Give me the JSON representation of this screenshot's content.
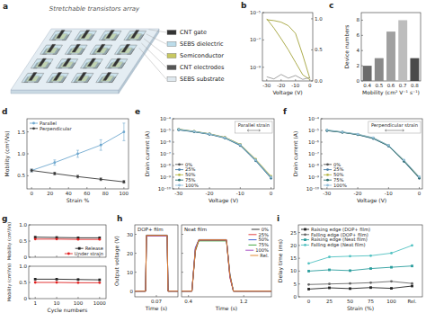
{
  "diagram": {
    "panel": "a",
    "title": "Stretchable transistors array",
    "layers": [
      "CNT gate",
      "SEBS dielectric",
      "Semiconductor",
      "CNT electrodes",
      "SEBS substrate"
    ]
  },
  "chart_data": [
    {
      "panel": "b",
      "type": "line",
      "log": "y",
      "x": [
        -30,
        -25,
        -20,
        -15,
        -10,
        -5,
        0
      ],
      "xlim": [
        -33,
        2
      ],
      "xticks": [
        -30,
        -20,
        -10,
        0
      ],
      "ylim": [
        1e-10,
        1e-05
      ],
      "yticks": [
        {
          "value": 1e-09,
          "label": "10⁻⁹"
        },
        {
          "value": 1e-07,
          "label": "10⁻⁷"
        },
        {
          "value": 1e-05,
          "label": "10⁻⁵"
        }
      ],
      "y2lim": [
        0,
        1.1
      ],
      "y2ticks": [
        {
          "value": 0,
          "label": "0.0"
        },
        0.5,
        {
          "value": 1,
          "label": "1.0"
        }
      ],
      "xlabel": "Voltage (V)",
      "series": [
        {
          "color": "#a3a33a",
          "marker": "none",
          "line_style": "solid",
          "values": [
            3e-06,
            2.6e-06,
            2e-06,
            1.1e-06,
            3e-07,
            8e-09,
            1.5e-10
          ]
        },
        {
          "color": "#9a9a9a",
          "marker": "none",
          "line_style": "solid",
          "values": [
            2e-10,
            1.4e-10,
            3e-10,
            1.6e-10,
            2.5e-10,
            1.3e-10,
            1.8e-10
          ]
        },
        {
          "color": "#a3a33a",
          "axis": "y2",
          "marker": "none",
          "line_style": "solid",
          "values": [
            1.0,
            0.85,
            0.68,
            0.5,
            0.3,
            0.1,
            0.02
          ]
        }
      ]
    },
    {
      "panel": "c",
      "type": "bar",
      "categories": [
        "0.4",
        "0.5",
        "0.6",
        "0.7",
        "0.8"
      ],
      "values": [
        2,
        3,
        6.5,
        8,
        3
      ],
      "colors": [
        "#6b6b6b",
        "#8a8a8a",
        "#a0a0a0",
        "#bdbdbd",
        "#4a4a4a"
      ],
      "ylim": [
        0,
        9
      ],
      "yticks": [
        0,
        2,
        4,
        6,
        8
      ],
      "xlabel": "Mobility (cm² V⁻¹ s⁻¹)",
      "ylabel": "Device numbers"
    },
    {
      "panel": "d",
      "type": "line",
      "x": [
        0,
        25,
        50,
        75,
        100
      ],
      "xlim": [
        -5,
        105
      ],
      "xticks": [
        0,
        20,
        40,
        60,
        80,
        100
      ],
      "ylim": [
        0.2,
        1.8
      ],
      "yticks": [
        0.5,
        {
          "value": 1,
          "label": "1.0"
        },
        1.5
      ],
      "xlabel": "Strain %",
      "ylabel": "Mobility (cm²/Vs)",
      "legend": "upper left",
      "series": [
        {
          "name": "Parallel",
          "color": "#6fa8cf",
          "marker": "circle",
          "line_style": "solid",
          "values": [
            0.62,
            0.8,
            1.0,
            1.2,
            1.5
          ],
          "errors": [
            0.03,
            0.06,
            0.08,
            0.12,
            0.2
          ]
        },
        {
          "name": "Perpendicular",
          "color": "#3a3a3a",
          "marker": "circle",
          "line_style": "solid",
          "values": [
            0.62,
            0.55,
            0.48,
            0.42,
            0.36
          ],
          "errors": [
            0.03,
            0.03,
            0.03,
            0.03,
            0.03
          ]
        }
      ]
    },
    {
      "panel": "e",
      "type": "line",
      "log": "y",
      "x": [
        -30,
        -25,
        -20,
        -15,
        -10,
        -5,
        0
      ],
      "xlim": [
        -32,
        1
      ],
      "xticks": [
        -30,
        -20,
        -10,
        0
      ],
      "ylim": [
        1e-10,
        0.0001
      ],
      "yticks": [
        {
          "value": 1e-10,
          "label": "10⁻¹⁰"
        },
        {
          "value": 1e-09,
          "label": "10⁻⁹"
        },
        {
          "value": 1e-08,
          "label": "10⁻⁸"
        },
        {
          "value": 1e-07,
          "label": "10⁻⁷"
        },
        {
          "value": 1e-06,
          "label": "10⁻⁶"
        },
        {
          "value": 1e-05,
          "label": "10⁻⁵"
        },
        {
          "value": 0.0001,
          "label": "10⁻⁴"
        }
      ],
      "xlabel": "Voltage (V)",
      "ylabel": "Drain current (A)",
      "legend": "lower left",
      "annotation": "Parallel strain",
      "series": [
        {
          "name": "0%",
          "color": "#555555",
          "marker": "circle",
          "line_style": "solid",
          "values": [
            1.2e-05,
            8e-06,
            5e-06,
            2.5e-06,
            6e-07,
            3e-08,
            1e-09
          ]
        },
        {
          "name": "25%",
          "color": "#4a7fa8",
          "marker": "circle",
          "line_style": "solid",
          "values": [
            1.1e-05,
            7.5e-06,
            4.6e-06,
            2.2e-06,
            5e-07,
            2.5e-08,
            8e-10
          ]
        },
        {
          "name": "50%",
          "color": "#b8b84a",
          "marker": "circle",
          "line_style": "solid",
          "values": [
            1.3e-05,
            8.5e-06,
            5.2e-06,
            2.6e-06,
            6.5e-07,
            3.5e-08,
            1.2e-09
          ]
        },
        {
          "name": "75%",
          "color": "#2e6e70",
          "marker": "circle",
          "line_style": "solid",
          "values": [
            1.15e-05,
            7.8e-06,
            4.8e-06,
            2.3e-06,
            5.5e-07,
            2.8e-08,
            9e-10
          ]
        },
        {
          "name": "100%",
          "color": "#93bfdc",
          "marker": "circle",
          "line_style": "solid",
          "values": [
            1.25e-05,
            8.2e-06,
            5e-06,
            2.4e-06,
            6e-07,
            3e-08,
            1e-09
          ]
        }
      ]
    },
    {
      "panel": "f",
      "type": "line",
      "log": "y",
      "x": [
        -30,
        -25,
        -20,
        -15,
        -10,
        -5,
        0
      ],
      "xlim": [
        -32,
        1
      ],
      "xticks": [
        -30,
        -20,
        -10,
        0
      ],
      "ylim": [
        1e-10,
        0.0001
      ],
      "yticks": [
        {
          "value": 1e-10,
          "label": "10⁻¹⁰"
        },
        {
          "value": 1e-09,
          "label": "10⁻⁹"
        },
        {
          "value": 1e-08,
          "label": "10⁻⁸"
        },
        {
          "value": 1e-07,
          "label": "10⁻⁷"
        },
        {
          "value": 1e-06,
          "label": "10⁻⁶"
        },
        {
          "value": 1e-05,
          "label": "10⁻⁵"
        },
        {
          "value": 0.0001,
          "label": "10⁻⁴"
        }
      ],
      "xlabel": "Voltage (V)",
      "ylabel": "Drain current (A)",
      "legend": "lower left",
      "annotation": "Perpendicular strain",
      "series": [
        {
          "name": "0%",
          "color": "#555555",
          "marker": "circle",
          "line_style": "solid",
          "values": [
            1e-05,
            7e-06,
            4.5e-06,
            2.2e-06,
            5e-07,
            2.5e-08,
            9e-10
          ]
        },
        {
          "name": "25%",
          "color": "#4a7fa8",
          "marker": "circle",
          "line_style": "solid",
          "values": [
            9.5e-06,
            6.8e-06,
            4.2e-06,
            2e-06,
            4.6e-07,
            2.2e-08,
            8e-10
          ]
        },
        {
          "name": "50%",
          "color": "#b8b84a",
          "marker": "circle",
          "line_style": "solid",
          "values": [
            1.05e-05,
            7.2e-06,
            4.6e-06,
            2.3e-06,
            5.2e-07,
            2.7e-08,
            1e-09
          ]
        },
        {
          "name": "75%",
          "color": "#2e6e70",
          "marker": "circle",
          "line_style": "solid",
          "values": [
            9.8e-06,
            6.9e-06,
            4.4e-06,
            2.1e-06,
            4.8e-07,
            2.4e-08,
            8.5e-10
          ]
        },
        {
          "name": "100%",
          "color": "#93bfdc",
          "marker": "circle",
          "line_style": "solid",
          "values": [
            1.1e-05,
            7.5e-06,
            4.8e-06,
            2.4e-06,
            5.5e-07,
            3e-08,
            1.1e-09
          ]
        }
      ]
    },
    {
      "panel": "g",
      "type": "line",
      "log": "x",
      "x": [
        1,
        10,
        100,
        1000
      ],
      "xlim": [
        0.5,
        2000
      ],
      "xticks": [
        1,
        10,
        100,
        1000
      ],
      "ylim": [
        0,
        1
      ],
      "yticks": [
        0,
        0.5,
        {
          "value": 1,
          "label": "1.0"
        }
      ],
      "tick_labels": "y",
      "ylabel": "Mobility (cm²/Vs)",
      "legend": "lower right",
      "series": [
        {
          "name": "Release",
          "color": "#222222",
          "marker": "square",
          "line_style": "solid",
          "values": [
            0.62,
            0.61,
            0.6,
            0.6
          ]
        },
        {
          "name": "Under strain",
          "color": "#e02020",
          "marker": "circle",
          "line_style": "solid",
          "values": [
            0.56,
            0.56,
            0.55,
            0.55
          ]
        }
      ]
    },
    {
      "type": "line",
      "log": "x",
      "x": [
        1,
        10,
        100,
        1000
      ],
      "xlim": [
        0.5,
        2000
      ],
      "xticks": [
        1,
        10,
        100,
        1000
      ],
      "ylim": [
        0,
        1
      ],
      "yticks": [
        0,
        0.5,
        {
          "value": 1,
          "label": "1.0"
        }
      ],
      "xlabel": "Cycle numbers",
      "ylabel": "Mobility (cm²/Vs)",
      "series": [
        {
          "color": "#222222",
          "marker": "square",
          "line_style": "solid",
          "values": [
            0.6,
            0.6,
            0.59,
            0.58
          ]
        },
        {
          "color": "#e02020",
          "marker": "circle",
          "line_style": "solid",
          "values": [
            0.5,
            0.5,
            0.49,
            0.49
          ]
        }
      ]
    },
    {
      "panel": "h",
      "type": "line",
      "title": "DOP+ film",
      "x": [
        0.02,
        0.045,
        0.047,
        0.095,
        0.097,
        0.12
      ],
      "xlim": [
        0.02,
        0.12
      ],
      "xticks": [
        0.07
      ],
      "ylim": [
        -3,
        35
      ],
      "yticks": [
        0,
        10,
        20,
        30
      ],
      "xlabel": "Time (s)",
      "ylabel": "Output voltage (V)",
      "series": [
        {
          "color": "#222222",
          "marker": "none",
          "line_style": "solid",
          "values": [
            0,
            0,
            29.5,
            29.5,
            0,
            0
          ]
        },
        {
          "color": "#e03030",
          "marker": "none",
          "line_style": "solid",
          "values": [
            0,
            0,
            29.3,
            29.3,
            0,
            0
          ]
        },
        {
          "color": "#3050d0",
          "marker": "none",
          "line_style": "solid",
          "values": [
            0,
            0,
            29.6,
            29.6,
            0,
            0
          ]
        },
        {
          "color": "#30a030",
          "marker": "none",
          "line_style": "solid",
          "values": [
            0,
            0,
            29.4,
            29.4,
            0,
            0
          ]
        },
        {
          "color": "#a040c0",
          "marker": "none",
          "line_style": "solid",
          "values": [
            0,
            0,
            29.2,
            29.2,
            0,
            0
          ]
        },
        {
          "color": "#e08020",
          "marker": "none",
          "line_style": "solid",
          "values": [
            0,
            0,
            29.5,
            29.5,
            0,
            0
          ]
        }
      ]
    },
    {
      "type": "line",
      "title": "Neat film",
      "x": [
        0.3,
        0.45,
        0.5,
        0.55,
        0.95,
        1.0,
        1.05,
        1.6
      ],
      "xlim": [
        0.3,
        1.6
      ],
      "xticks": [
        0.4,
        1.2
      ],
      "ylim": [
        -3,
        35
      ],
      "yticks": [
        0,
        10,
        20,
        30
      ],
      "tick_labels": "x",
      "xlabel": "Time (s)",
      "legend": "upper right",
      "series": [
        {
          "name": "0%",
          "color": "#222222",
          "marker": "none",
          "line_style": "solid",
          "values": [
            0,
            0,
            22,
            27,
            27,
            8,
            0,
            0
          ]
        },
        {
          "name": "25%",
          "color": "#e03030",
          "marker": "none",
          "line_style": "solid",
          "values": [
            0,
            0,
            21,
            26.8,
            26.8,
            7,
            0,
            0
          ]
        },
        {
          "name": "50%",
          "color": "#3050d0",
          "marker": "none",
          "line_style": "solid",
          "values": [
            0,
            0,
            23,
            27.2,
            27.2,
            9,
            0,
            0
          ]
        },
        {
          "name": "75%",
          "color": "#30a030",
          "marker": "none",
          "line_style": "solid",
          "values": [
            0,
            0,
            21.5,
            26.5,
            26.5,
            8,
            0,
            0
          ]
        },
        {
          "name": "100%",
          "color": "#a040c0",
          "marker": "none",
          "line_style": "solid",
          "values": [
            0,
            0,
            22.5,
            27,
            27,
            7.5,
            0,
            0
          ]
        },
        {
          "name": "Rel.",
          "color": "#e08020",
          "marker": "none",
          "line_style": "solid",
          "values": [
            0,
            0,
            22,
            27.1,
            27.1,
            8.5,
            0,
            0
          ]
        }
      ]
    },
    {
      "panel": "i",
      "type": "line",
      "categories": [
        "0",
        "25",
        "50",
        "75",
        "100",
        "Rel."
      ],
      "ylim": [
        0,
        28
      ],
      "yticks": [
        0,
        5,
        10,
        15,
        20,
        25
      ],
      "xlabel": "Strain (%)",
      "ylabel": "Delay time (ms)",
      "legend": "upper left",
      "series": [
        {
          "name": "Raising edge (DOP+ film)",
          "color": "#222222",
          "marker": "square",
          "line_style": "solid",
          "values": [
            3,
            3.5,
            3.2,
            3.6,
            3.3,
            4.2
          ]
        },
        {
          "name": "Falling edge (DOP+ film)",
          "color": "#666666",
          "marker": "circle",
          "line_style": "solid",
          "values": [
            4.8,
            5,
            5.2,
            5.5,
            6,
            5.2
          ]
        },
        {
          "name": "Raising edge (Neat film)",
          "color": "#2a9d9d",
          "marker": "square",
          "line_style": "solid",
          "values": [
            10,
            10.5,
            10.2,
            11,
            11.5,
            12
          ]
        },
        {
          "name": "Falling edge (Neat film)",
          "color": "#4fc1c1",
          "marker": "circle",
          "line_style": "solid",
          "values": [
            13,
            15.5,
            15.8,
            16,
            17,
            20
          ]
        }
      ]
    }
  ]
}
